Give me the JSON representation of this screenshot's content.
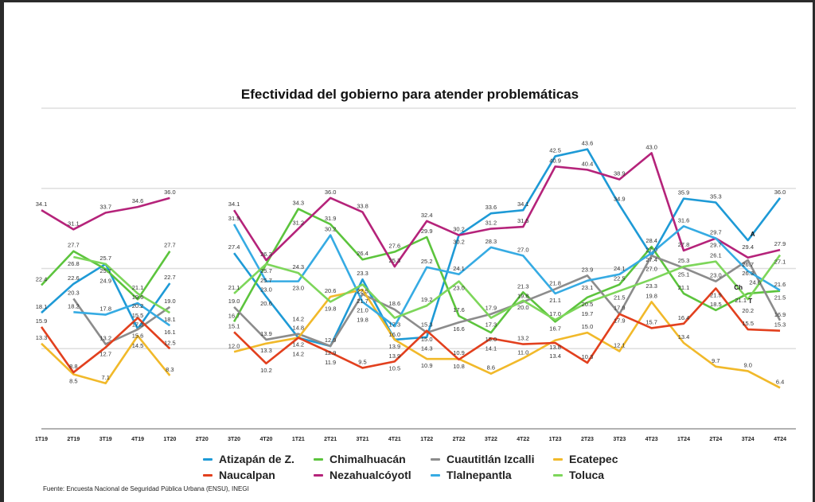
{
  "chart_data": {
    "type": "line",
    "title": "Efectividad del gobierno para atender problemáticas",
    "categories": [
      "1T19",
      "2T19",
      "3T19",
      "4T19",
      "1T20",
      "2T20",
      "3T20",
      "4T20",
      "1T21",
      "2T21",
      "3T21",
      "4T21",
      "1T22",
      "2T22",
      "3T22",
      "4T22",
      "1T23",
      "2T23",
      "3T23",
      "4T23",
      "1T24",
      "2T24",
      "3T24",
      "4T24"
    ],
    "ylim": [
      0,
      50
    ],
    "grid": true,
    "legend_position": "bottom",
    "series": [
      {
        "name": "Atizapán de Z.",
        "color": "#1e9ad6",
        "values": [
          18.1,
          22.6,
          25.7,
          15.6,
          22.7,
          null,
          27.4,
          20.6,
          14.2,
          12.9,
          23.3,
          13.9,
          14.3,
          30.2,
          33.6,
          34.1,
          42.5,
          43.6,
          34.9,
          27.0,
          35.9,
          35.3,
          29.4,
          36.0
        ]
      },
      {
        "name": "Chimalhuacán",
        "color": "#5cc43d",
        "values": [
          22.4,
          27.7,
          24.9,
          20.2,
          27.7,
          null,
          16.7,
          25.7,
          34.3,
          31.9,
          26.4,
          27.6,
          29.9,
          17.6,
          15.0,
          21.3,
          16.7,
          20.5,
          22.5,
          28.4,
          21.1,
          18.5,
          21.1,
          21.5
        ]
      },
      {
        "name": "Cuautitlán Izcalli",
        "color": "#8c8c8c",
        "values": [
          null,
          20.3,
          13.2,
          15.5,
          19.0,
          null,
          19.0,
          13.9,
          14.8,
          12.9,
          21.0,
          18.6,
          15.0,
          16.6,
          17.9,
          19.8,
          21.8,
          23.9,
          17.9,
          27.0,
          25.1,
          23.0,
          26.3,
          16.9
        ]
      },
      {
        "name": "Ecatepec",
        "color": "#f1b92a",
        "values": [
          13.3,
          8.5,
          7.1,
          14.5,
          8.3,
          null,
          12.0,
          13.3,
          14.2,
          20.6,
          21.7,
          13.9,
          10.9,
          10.9,
          8.6,
          11.0,
          13.8,
          15.0,
          12.1,
          19.8,
          13.4,
          9.7,
          9.0,
          6.4
        ]
      },
      {
        "name": "Naucalpan",
        "color": "#e2401e",
        "values": [
          15.9,
          8.8,
          12.7,
          17.3,
          12.5,
          null,
          15.1,
          10.2,
          14.2,
          11.9,
          9.5,
          10.5,
          15.3,
          10.8,
          14.1,
          13.2,
          13.4,
          10.3,
          17.9,
          15.7,
          16.4,
          21.9,
          15.5,
          15.3
        ]
      },
      {
        "name": "Nezahualcóyotl",
        "color": "#b5237a",
        "values": [
          34.1,
          31.1,
          33.7,
          34.6,
          36.0,
          null,
          34.1,
          26.3,
          31.2,
          36.0,
          33.8,
          25.3,
          32.4,
          30.2,
          31.2,
          31.5,
          40.9,
          40.4,
          38.9,
          43.0,
          27.8,
          29.7,
          26.7,
          27.9
        ]
      },
      {
        "name": "Tlalnepantla",
        "color": "#36abe3",
        "values": [
          null,
          18.2,
          17.8,
          19.6,
          16.1,
          null,
          31.9,
          23.0,
          23.0,
          30.2,
          19.8,
          16.0,
          25.2,
          24.1,
          28.3,
          27.0,
          21.1,
          23.1,
          24.1,
          27.4,
          31.6,
          29.7,
          24.6,
          21.6
        ]
      },
      {
        "name": "Toluca",
        "color": "#7dd65a",
        "values": [
          null,
          26.8,
          25.7,
          21.1,
          18.1,
          null,
          21.1,
          25.7,
          24.3,
          19.8,
          22.5,
          17.3,
          19.2,
          23.0,
          17.3,
          20.0,
          17.0,
          19.7,
          21.5,
          23.3,
          25.3,
          26.1,
          20.2,
          27.1
        ]
      }
    ],
    "annotations": [
      "A",
      "Ch",
      "T"
    ]
  },
  "source": "Fuente: Encuesta Nacional de Seguridad Pública Urbana (ENSU), INEGI"
}
